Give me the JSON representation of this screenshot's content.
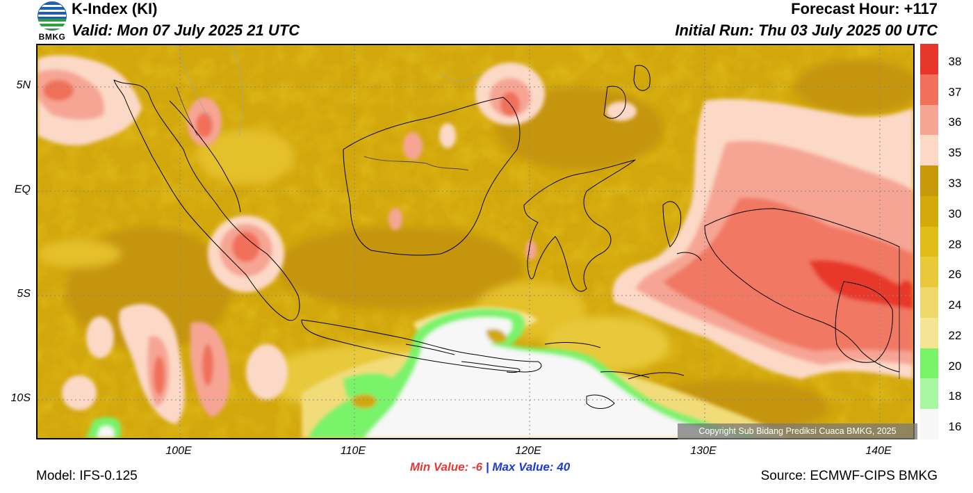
{
  "header": {
    "logo_text": "BMKG",
    "title": "K-Index (KI)",
    "valid": "Valid: Mon 07 July 2025 21 UTC",
    "forecast_hour": "Forecast Hour: +117",
    "initial_run": "Initial Run: Thu 03 July 2025 00 UTC"
  },
  "axes": {
    "lat_labels": [
      "5N",
      "EQ",
      "5S",
      "10S"
    ],
    "lon_labels": [
      "100E",
      "110E",
      "120E",
      "130E",
      "140E"
    ]
  },
  "colorbar": {
    "ticks": [
      "38",
      "37",
      "36",
      "35",
      "33",
      "30",
      "28",
      "26",
      "24",
      "22",
      "20",
      "18",
      "16"
    ],
    "colors": [
      "#e8372a",
      "#f0705a",
      "#f6a594",
      "#fcd9c7",
      "#c7980a",
      "#d4a90c",
      "#e0bc18",
      "#e8c93a",
      "#efd869",
      "#f5e494",
      "#79f36a",
      "#a7f7a0",
      "#f7f7f7"
    ]
  },
  "stats": {
    "min_label": "Min Value:",
    "min_value": "-6",
    "sep": "|",
    "max_label": "Max Value:",
    "max_value": "40"
  },
  "footer": {
    "model": "Model: IFS-0.125",
    "source": "Source: ECMWF-CIPS BMKG",
    "copyright": "Copyright Sub Bidang Prediksi Cuaca BMKG, 2025"
  }
}
